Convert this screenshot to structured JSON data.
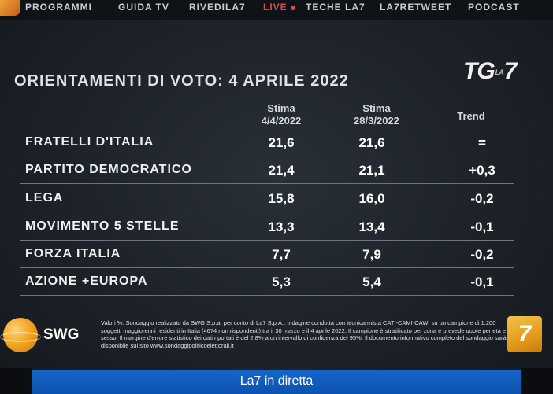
{
  "nav": {
    "items": [
      {
        "label": "PROGRAMMI"
      },
      {
        "label": "GUIDA TV"
      },
      {
        "label": "RIVEDILA7"
      },
      {
        "label": "LIVE"
      },
      {
        "label": "TECHE LA7"
      },
      {
        "label": "LA7RETWEET"
      },
      {
        "label": "PODCAST"
      }
    ]
  },
  "title": "ORIENTAMENTI DI VOTO: 4 APRILE 2022",
  "logo": {
    "tg": "TG",
    "la": "LA",
    "seven": "7"
  },
  "table": {
    "columns": [
      {
        "label": "Stima",
        "sublabel": "4/4/2022"
      },
      {
        "label": "Stima",
        "sublabel": "28/3/2022"
      },
      {
        "label": "Trend",
        "sublabel": ""
      }
    ],
    "rows": [
      {
        "party": "FRATELLI D'ITALIA",
        "current": "21,6",
        "previous": "21,6",
        "trend": "="
      },
      {
        "party": "PARTITO DEMOCRATICO",
        "current": "21,4",
        "previous": "21,1",
        "trend": "+0,3"
      },
      {
        "party": "LEGA",
        "current": "15,8",
        "previous": "16,0",
        "trend": "-0,2"
      },
      {
        "party": "MOVIMENTO 5 STELLE",
        "current": "13,3",
        "previous": "13,4",
        "trend": "-0,1"
      },
      {
        "party": "FORZA ITALIA",
        "current": "7,7",
        "previous": "7,9",
        "trend": "-0,2"
      },
      {
        "party": "AZIONE +EUROPA",
        "current": "5,3",
        "previous": "5,4",
        "trend": "-0,1"
      }
    ]
  },
  "footer": {
    "brand": "SWG",
    "disclaimer": "Valori %. Sondaggio realizzato da SWG S.p.a. per conto di La7 S.p.A.. Indagine condotta con tecnica mista CATI-CAMI-CAWI su un campione di 1.200 soggetti maggiorenni residenti in Italia (4674 non rispondenti) tra il 30 marzo e il 4 aprile 2022. Il campione è stratificato per zona e prevede quote per età e sesso. Il margine d'errore statistico dei dati riportati è del 2,8% a un intervallo di confidenza del 95%. Il documento informativo completo del sondaggio sarà disponibile sul sito www.sondaggipoliticoelettorali.it",
    "la7": "7"
  },
  "bottombar": {
    "label": "La7 in diretta"
  },
  "colors": {
    "accent": "#1566c9",
    "swg": "#f5a623",
    "live": "#e0474c"
  }
}
